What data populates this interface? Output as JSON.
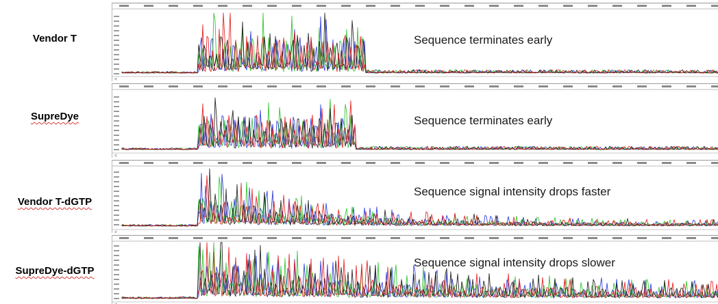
{
  "rows": [
    {
      "label": "Vendor T",
      "label_underlined": false,
      "caption": "Sequence terminates early"
    },
    {
      "label": "SupreDye",
      "label_underlined": true,
      "caption": "Sequence terminates early"
    },
    {
      "label": "Vendor T-dGTP",
      "label_underlined": true,
      "caption": "Sequence signal intensity drops faster"
    },
    {
      "label": "SupreDye-dGTP",
      "label_underlined": true,
      "caption": "Sequence signal intensity drops slower"
    }
  ],
  "trace_colors": {
    "A": "#1fbf1f",
    "C": "#1f2fdc",
    "G": "#111111",
    "T": "#e01010"
  }
}
